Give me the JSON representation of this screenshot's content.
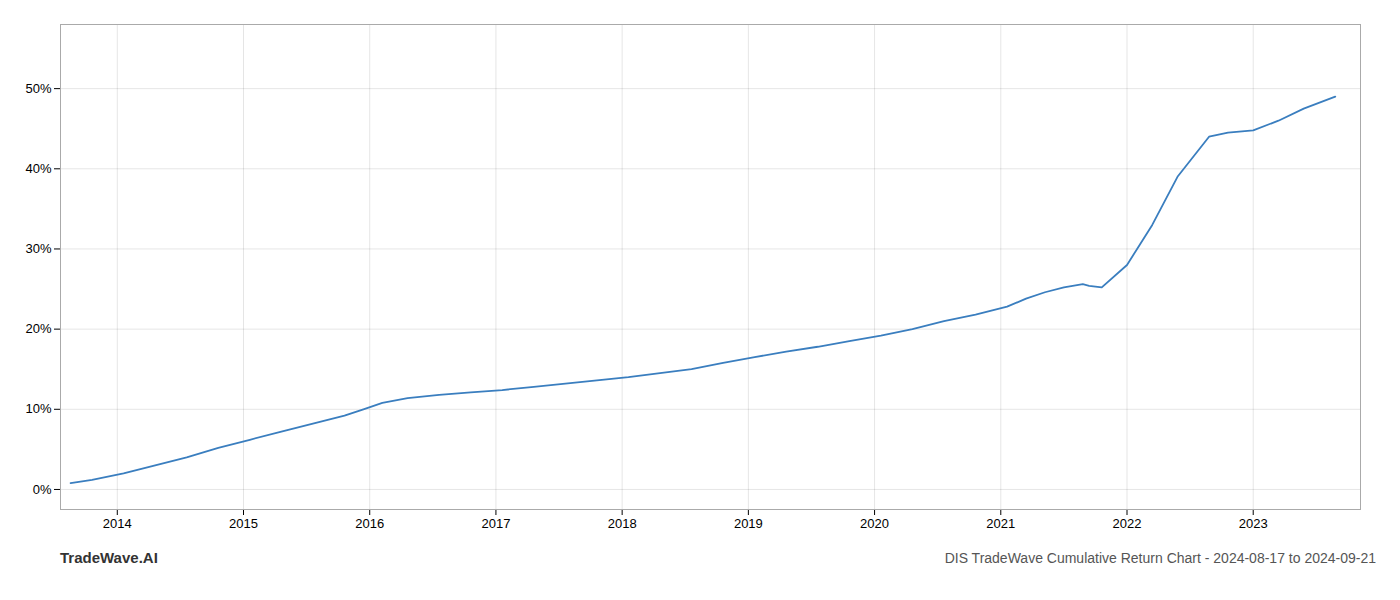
{
  "chart_data": {
    "type": "line",
    "title": "DIS TradeWave Cumulative Return Chart - 2024-08-17 to 2024-09-21",
    "annotations": [
      "TradeWave.AI"
    ],
    "x": [
      2013.63,
      2013.8,
      2014.05,
      2014.3,
      2014.55,
      2014.8,
      2015.05,
      2015.3,
      2015.55,
      2015.8,
      2015.95,
      2016.1,
      2016.3,
      2016.55,
      2016.8,
      2017.05,
      2017.3,
      2017.55,
      2017.8,
      2018.05,
      2018.3,
      2018.55,
      2018.8,
      2019.05,
      2019.3,
      2019.55,
      2019.8,
      2020.05,
      2020.3,
      2020.55,
      2020.8,
      2021.05,
      2021.2,
      2021.35,
      2021.5,
      2021.65,
      2021.7,
      2021.8,
      2022.0,
      2022.2,
      2022.4,
      2022.6,
      2022.65,
      2022.8,
      2023.0,
      2023.2,
      2023.4,
      2023.65
    ],
    "values": [
      0.008,
      0.012,
      0.02,
      0.03,
      0.04,
      0.052,
      0.062,
      0.072,
      0.082,
      0.092,
      0.1,
      0.108,
      0.114,
      0.118,
      0.121,
      0.124,
      0.128,
      0.132,
      0.136,
      0.14,
      0.145,
      0.15,
      0.158,
      0.165,
      0.172,
      0.178,
      0.185,
      0.192,
      0.2,
      0.21,
      0.218,
      0.228,
      0.238,
      0.246,
      0.252,
      0.256,
      0.254,
      0.252,
      0.28,
      0.33,
      0.39,
      0.43,
      0.44,
      0.445,
      0.448,
      0.46,
      0.475,
      0.49
    ],
    "color": "#3a7ebf",
    "xlim": [
      2013.55,
      2023.85
    ],
    "xticks": [
      2014,
      2015,
      2016,
      2017,
      2018,
      2019,
      2020,
      2021,
      2022,
      2023
    ],
    "ylim": [
      -0.025,
      0.58
    ],
    "yticks": [
      {
        "value": 0.0,
        "label": "0%"
      },
      {
        "value": 0.1,
        "label": "10%"
      },
      {
        "value": 0.2,
        "label": "20%"
      },
      {
        "value": 0.3,
        "label": "30%"
      },
      {
        "value": 0.4,
        "label": "40%"
      },
      {
        "value": 0.5,
        "label": "50%"
      }
    ],
    "grid": true
  }
}
